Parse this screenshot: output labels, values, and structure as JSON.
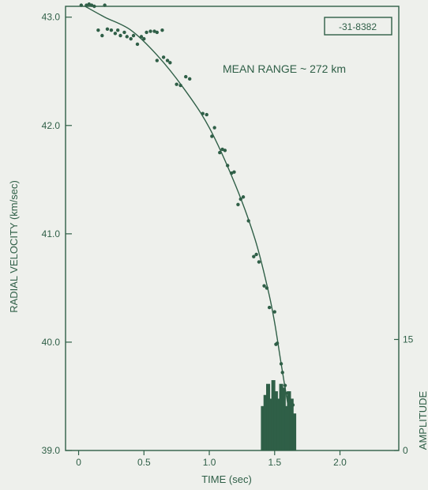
{
  "chart_data": {
    "type": "scatter",
    "annotation_id": "-31-8382",
    "annotation": "MEAN RANGE ~ 272 km",
    "xlabel": "TIME (sec)",
    "ylabel": "RADIAL VELOCITY (km/sec)",
    "y2label": "AMPLITUDE",
    "xlim": [
      -0.1,
      2.45
    ],
    "ylim": [
      39.0,
      43.1
    ],
    "x_ticks": [
      {
        "value": 0,
        "label": "0"
      },
      {
        "value": 0.5,
        "label": "0.5"
      },
      {
        "value": 1.0,
        "label": "1.0"
      },
      {
        "value": 1.5,
        "label": "1.5"
      },
      {
        "value": 2.0,
        "label": "2.0"
      }
    ],
    "y_ticks": [
      {
        "value": 39.0,
        "label": "39.0"
      },
      {
        "value": 40.0,
        "label": "40.0"
      },
      {
        "value": 41.0,
        "label": "41.0"
      },
      {
        "value": 42.0,
        "label": "42.0"
      },
      {
        "value": 43.0,
        "label": "43.0"
      }
    ],
    "y2_ticks": [
      {
        "value": 0,
        "label": "0"
      },
      {
        "value": 15,
        "label": "15"
      }
    ],
    "y2lim": [
      0,
      60
    ],
    "fit_curve": {
      "x": [
        0.05,
        0.2,
        0.4,
        0.6,
        0.8,
        1.0,
        1.2,
        1.35,
        1.45,
        1.5,
        1.55,
        1.6,
        1.65
      ],
      "y": [
        43.1,
        43.0,
        42.88,
        42.65,
        42.35,
        41.98,
        41.45,
        40.95,
        40.48,
        40.18,
        39.8,
        39.43,
        39.05
      ]
    },
    "points": [
      {
        "x": 0.02,
        "y": 43.11
      },
      {
        "x": 0.06,
        "y": 43.11
      },
      {
        "x": 0.08,
        "y": 43.12
      },
      {
        "x": 0.1,
        "y": 43.11
      },
      {
        "x": 0.12,
        "y": 43.1
      },
      {
        "x": 0.2,
        "y": 43.11
      },
      {
        "x": 0.15,
        "y": 42.88
      },
      {
        "x": 0.18,
        "y": 42.83
      },
      {
        "x": 0.22,
        "y": 42.89
      },
      {
        "x": 0.25,
        "y": 42.88
      },
      {
        "x": 0.28,
        "y": 42.85
      },
      {
        "x": 0.3,
        "y": 42.88
      },
      {
        "x": 0.32,
        "y": 42.83
      },
      {
        "x": 0.35,
        "y": 42.86
      },
      {
        "x": 0.37,
        "y": 42.82
      },
      {
        "x": 0.4,
        "y": 42.8
      },
      {
        "x": 0.42,
        "y": 42.83
      },
      {
        "x": 0.45,
        "y": 42.75
      },
      {
        "x": 0.48,
        "y": 42.82
      },
      {
        "x": 0.5,
        "y": 42.8
      },
      {
        "x": 0.52,
        "y": 42.86
      },
      {
        "x": 0.55,
        "y": 42.87
      },
      {
        "x": 0.58,
        "y": 42.87
      },
      {
        "x": 0.6,
        "y": 42.86
      },
      {
        "x": 0.64,
        "y": 42.88
      },
      {
        "x": 0.6,
        "y": 42.6
      },
      {
        "x": 0.65,
        "y": 42.63
      },
      {
        "x": 0.68,
        "y": 42.6
      },
      {
        "x": 0.7,
        "y": 42.58
      },
      {
        "x": 0.75,
        "y": 42.38
      },
      {
        "x": 0.78,
        "y": 42.37
      },
      {
        "x": 0.82,
        "y": 42.45
      },
      {
        "x": 0.85,
        "y": 42.43
      },
      {
        "x": 0.95,
        "y": 42.11
      },
      {
        "x": 0.98,
        "y": 42.1
      },
      {
        "x": 1.02,
        "y": 41.9
      },
      {
        "x": 1.04,
        "y": 41.98
      },
      {
        "x": 1.08,
        "y": 41.75
      },
      {
        "x": 1.1,
        "y": 41.78
      },
      {
        "x": 1.12,
        "y": 41.77
      },
      {
        "x": 1.14,
        "y": 41.63
      },
      {
        "x": 1.17,
        "y": 41.56
      },
      {
        "x": 1.19,
        "y": 41.57
      },
      {
        "x": 1.22,
        "y": 41.27
      },
      {
        "x": 1.24,
        "y": 41.32
      },
      {
        "x": 1.26,
        "y": 41.34
      },
      {
        "x": 1.3,
        "y": 41.12
      },
      {
        "x": 1.34,
        "y": 40.79
      },
      {
        "x": 1.36,
        "y": 40.81
      },
      {
        "x": 1.38,
        "y": 40.74
      },
      {
        "x": 1.42,
        "y": 40.52
      },
      {
        "x": 1.44,
        "y": 40.5
      },
      {
        "x": 1.46,
        "y": 40.32
      },
      {
        "x": 1.5,
        "y": 40.28
      },
      {
        "x": 1.51,
        "y": 39.98
      },
      {
        "x": 1.52,
        "y": 39.99
      },
      {
        "x": 1.55,
        "y": 39.8
      },
      {
        "x": 1.56,
        "y": 39.72
      },
      {
        "x": 1.58,
        "y": 39.6
      },
      {
        "x": 1.6,
        "y": 39.53
      },
      {
        "x": 1.62,
        "y": 39.42
      },
      {
        "x": 1.64,
        "y": 39.42
      },
      {
        "x": 1.65,
        "y": 39.1
      }
    ],
    "amplitude_bars": [
      {
        "x": 1.41,
        "value": 6
      },
      {
        "x": 1.43,
        "value": 7.5
      },
      {
        "x": 1.45,
        "value": 9
      },
      {
        "x": 1.47,
        "value": 7
      },
      {
        "x": 1.49,
        "value": 9.5
      },
      {
        "x": 1.51,
        "value": 8
      },
      {
        "x": 1.53,
        "value": 7
      },
      {
        "x": 1.55,
        "value": 9
      },
      {
        "x": 1.57,
        "value": 8.5
      },
      {
        "x": 1.59,
        "value": 6
      },
      {
        "x": 1.61,
        "value": 8
      },
      {
        "x": 1.63,
        "value": 7
      },
      {
        "x": 1.65,
        "value": 5
      }
    ]
  }
}
